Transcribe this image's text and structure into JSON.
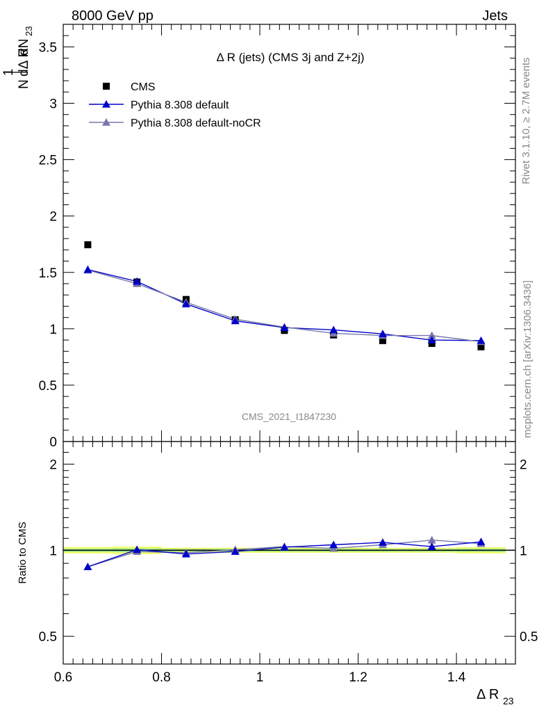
{
  "header": {
    "energy_label": "8000 GeV pp",
    "process_label": "Jets"
  },
  "side_labels": {
    "rivet": "Rivet 3.1.10, ≥ 2.7M events",
    "mcplots": "mcplots.cern.ch [arXiv:1306.3436]"
  },
  "analysis_id": "CMS_2021_I1847230",
  "colors": {
    "cms": "#000000",
    "pythia_default": "#0000cc",
    "pythia_nocr": "#7777aa",
    "band_green": "#99e699",
    "band_yellow": "#eeff66",
    "ratio_line": "#00aa00"
  },
  "chart_data": {
    "type": "scatter",
    "title": "Δ R (jets) (CMS 3j and Z+2j)",
    "xlabel": "Δ R23",
    "ylabel": "1/N dN/dΔ R23",
    "ratio_ylabel": "Ratio to CMS",
    "legend_position": "top-left",
    "x": [
      0.65,
      0.75,
      0.85,
      0.95,
      1.05,
      1.15,
      1.25,
      1.35,
      1.45
    ],
    "xlim": [
      0.6,
      1.52
    ],
    "ylim": [
      0,
      3.7
    ],
    "x_ticks": [
      "0.6",
      "0.8",
      "1",
      "1.2",
      "1.4"
    ],
    "x_tick_values": [
      0.6,
      0.8,
      1.0,
      1.2,
      1.4
    ],
    "y_ticks": [
      "0",
      "0.5",
      "1",
      "1.5",
      "2",
      "2.5",
      "3",
      "3.5"
    ],
    "y_tick_values": [
      0,
      0.5,
      1,
      1.5,
      2,
      2.5,
      3,
      3.5
    ],
    "ratio_ylim": [
      0.4,
      2.4
    ],
    "ratio_log": true,
    "ratio_ticks": [
      "0.5",
      "1",
      "2"
    ],
    "ratio_tick_values": [
      0.5,
      1,
      2
    ],
    "series": [
      {
        "name": "CMS",
        "marker": "square",
        "values": [
          1.745,
          1.415,
          1.26,
          1.08,
          0.985,
          0.945,
          0.895,
          0.87,
          0.84
        ]
      },
      {
        "name": "Pythia 8.308 default",
        "marker": "triangle",
        "values": [
          1.525,
          1.42,
          1.22,
          1.07,
          1.01,
          0.99,
          0.955,
          0.9,
          0.895
        ]
      },
      {
        "name": "Pythia 8.308 default-noCR",
        "marker": "triangle",
        "values": [
          1.52,
          1.4,
          1.235,
          1.085,
          1.015,
          0.96,
          0.94,
          0.94,
          0.885
        ]
      }
    ],
    "ratio_series": [
      {
        "name": "Pythia 8.308 default",
        "values": [
          0.875,
          1.005,
          0.97,
          0.99,
          1.025,
          1.045,
          1.065,
          1.03,
          1.07
        ]
      },
      {
        "name": "Pythia 8.308 default-noCR",
        "values": [
          0.875,
          0.99,
          0.98,
          1.005,
          1.03,
          1.015,
          1.045,
          1.085,
          1.055
        ]
      }
    ],
    "ratio_band_halfwidth": {
      "yellow": [
        0.025,
        0.03,
        0.02,
        0.02,
        0.02,
        0.02,
        0.02,
        0.02,
        0.025
      ],
      "green": [
        0.012,
        0.015,
        0.01,
        0.01,
        0.01,
        0.01,
        0.01,
        0.01,
        0.012
      ]
    }
  }
}
